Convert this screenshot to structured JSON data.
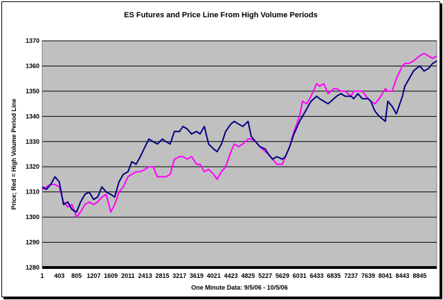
{
  "chart_data": {
    "type": "line",
    "title": "ES Futures and Price Line From High Volume Periods",
    "xlabel": "One Minute Data: 9/5/06 - 10/5/06",
    "ylabel": "Price; Red = High Volume Period Line",
    "ylim": [
      1280,
      1370
    ],
    "yticks": [
      1280,
      1290,
      1300,
      1310,
      1320,
      1330,
      1340,
      1350,
      1360,
      1370
    ],
    "xlim": [
      1,
      9247
    ],
    "xticks": [
      1,
      403,
      805,
      1207,
      1609,
      2011,
      2413,
      2815,
      3217,
      3619,
      4021,
      4423,
      4825,
      5227,
      5629,
      6031,
      6433,
      6835,
      7237,
      7639,
      8041,
      8443,
      8845
    ],
    "grid": "horizontal",
    "colors": {
      "plot_bg": "#c0c0c0",
      "price_line": "#000080",
      "volume_line": "#ff00ff"
    },
    "series": [
      {
        "color": "#000080",
        "x": [
          1,
          100,
          200,
          300,
          400,
          500,
          600,
          700,
          805,
          900,
          1000,
          1100,
          1207,
          1300,
          1400,
          1500,
          1609,
          1700,
          1800,
          1900,
          2011,
          2100,
          2200,
          2300,
          2413,
          2500,
          2600,
          2700,
          2815,
          2900,
          3000,
          3100,
          3217,
          3300,
          3400,
          3500,
          3619,
          3700,
          3800,
          3900,
          4021,
          4100,
          4200,
          4300,
          4423,
          4500,
          4600,
          4700,
          4825,
          4900,
          5000,
          5100,
          5227,
          5300,
          5400,
          5500,
          5629,
          5700,
          5800,
          5900,
          6031,
          6100,
          6200,
          6300,
          6433,
          6500,
          6600,
          6700,
          6835,
          6900,
          7000,
          7100,
          7237,
          7300,
          7400,
          7500,
          7639,
          7700,
          7800,
          7900,
          8041,
          8100,
          8200,
          8300,
          8443,
          8500,
          8600,
          8700,
          8845,
          8950,
          9050,
          9150,
          9247
        ],
        "y": [
          1312,
          1311,
          1313,
          1316,
          1314,
          1305,
          1306,
          1303,
          1302,
          1306,
          1309,
          1310,
          1307,
          1308,
          1312,
          1310,
          1309,
          1308,
          1314,
          1317,
          1318,
          1322,
          1321,
          1324,
          1328,
          1331,
          1330,
          1329,
          1331,
          1330,
          1329,
          1334,
          1334,
          1336,
          1335,
          1333,
          1334,
          1333,
          1336,
          1329,
          1327,
          1326,
          1329,
          1334,
          1337,
          1338,
          1337,
          1336,
          1338,
          1332,
          1330,
          1328,
          1327,
          1325,
          1323,
          1324,
          1323,
          1324,
          1328,
          1333,
          1338,
          1340,
          1343,
          1346,
          1348,
          1347,
          1346,
          1345,
          1347,
          1348,
          1349,
          1348,
          1348,
          1347,
          1349,
          1347,
          1347,
          1346,
          1342,
          1340,
          1338,
          1346,
          1344,
          1341,
          1348,
          1352,
          1355,
          1358,
          1360,
          1358,
          1359,
          1361,
          1362
        ]
      },
      {
        "color": "#ff00ff",
        "x": [
          1,
          100,
          200,
          300,
          400,
          500,
          600,
          700,
          805,
          900,
          1000,
          1100,
          1207,
          1300,
          1400,
          1500,
          1609,
          1700,
          1800,
          1900,
          2011,
          2100,
          2200,
          2300,
          2413,
          2500,
          2600,
          2700,
          2815,
          2900,
          3000,
          3100,
          3217,
          3300,
          3400,
          3500,
          3619,
          3700,
          3800,
          3900,
          4021,
          4100,
          4200,
          4300,
          4423,
          4500,
          4600,
          4700,
          4825,
          4900,
          5000,
          5100,
          5227,
          5300,
          5400,
          5500,
          5629,
          5700,
          5800,
          5900,
          6031,
          6100,
          6200,
          6300,
          6433,
          6500,
          6600,
          6700,
          6835,
          6900,
          7000,
          7100,
          7237,
          7300,
          7400,
          7500,
          7639,
          7700,
          7800,
          7900,
          8041,
          8100,
          8200,
          8300,
          8443,
          8500,
          8600,
          8700,
          8845,
          8950,
          9050,
          9150,
          9247
        ],
        "y": [
          1311,
          1312,
          1313,
          1313,
          1312,
          1306,
          1304,
          1305,
          1300,
          1302,
          1305,
          1306,
          1305,
          1306,
          1308,
          1309,
          1302,
          1305,
          1310,
          1312,
          1316,
          1317,
          1318,
          1318,
          1319,
          1320,
          1320,
          1316,
          1316,
          1316,
          1317,
          1323,
          1324,
          1324,
          1323,
          1324,
          1321,
          1321,
          1318,
          1319,
          1317,
          1315,
          1318,
          1320,
          1326,
          1329,
          1328,
          1329,
          1331,
          1331,
          1330,
          1328,
          1326,
          1325,
          1323,
          1321,
          1321,
          1324,
          1328,
          1334,
          1340,
          1346,
          1345,
          1348,
          1353,
          1352,
          1353,
          1349,
          1351,
          1351,
          1350,
          1350,
          1348,
          1350,
          1350,
          1350,
          1347,
          1346,
          1345,
          1347,
          1351,
          1350,
          1350,
          1355,
          1360,
          1361,
          1361,
          1362,
          1364,
          1365,
          1364,
          1363,
          1364
        ]
      }
    ]
  }
}
